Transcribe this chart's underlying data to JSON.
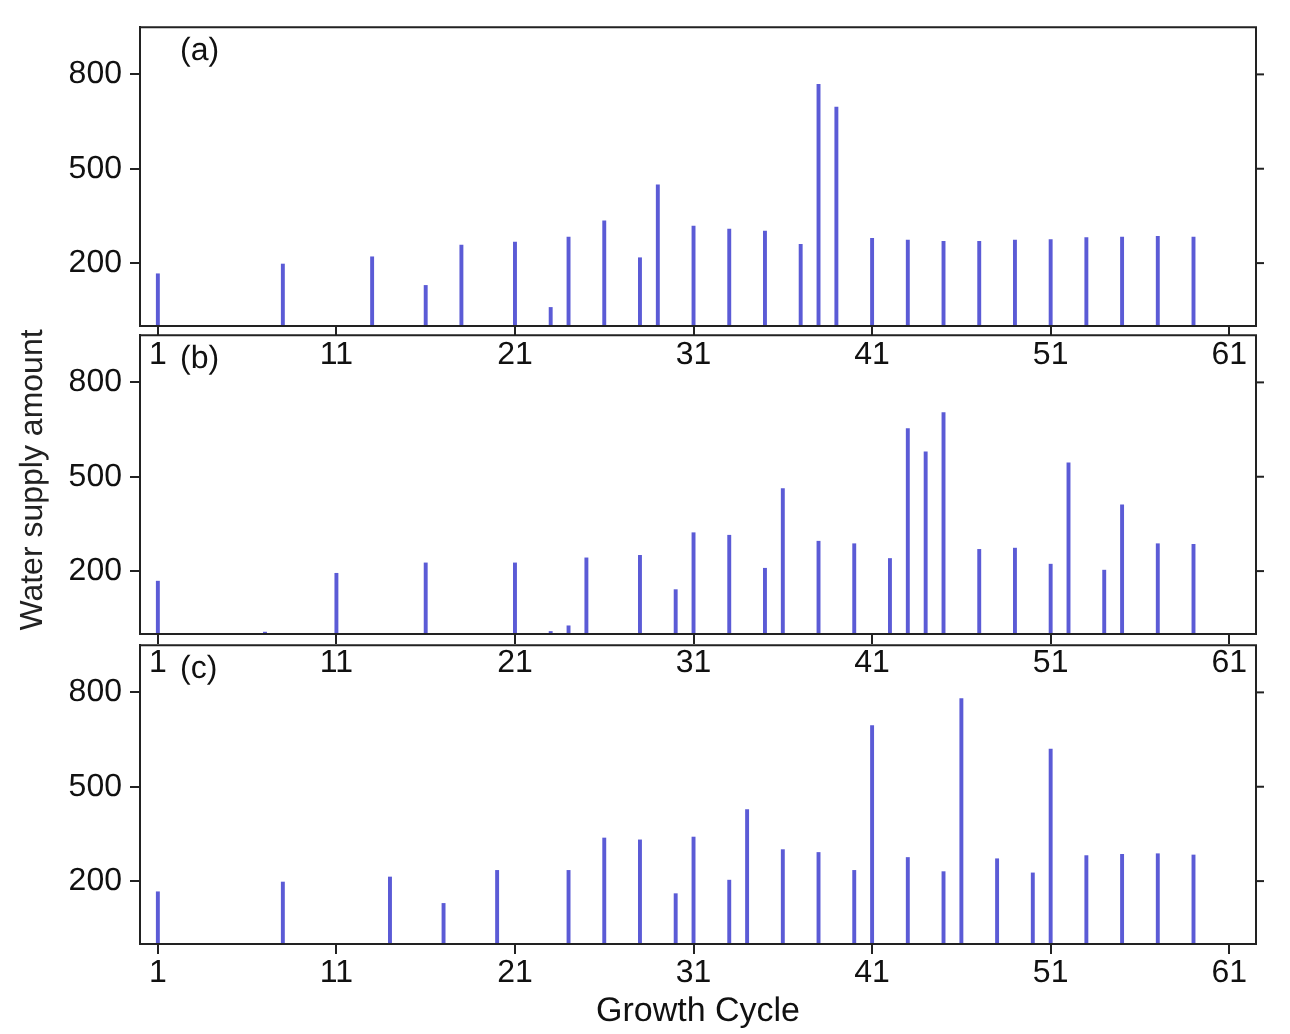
{
  "chart_data": [
    {
      "type": "bar",
      "title": "(a)",
      "color": "#5b5bd6",
      "xlim": [
        0,
        62.5
      ],
      "xticks": [
        1,
        11,
        21,
        31,
        41,
        51,
        61
      ],
      "ylim": [
        0,
        950
      ],
      "yticks": [
        200,
        500,
        800
      ],
      "grid": false,
      "legend": false,
      "x": [
        1,
        8,
        13,
        16,
        18,
        21,
        23,
        24,
        26,
        28,
        29,
        31,
        33,
        35,
        37,
        38,
        39,
        41,
        43,
        45,
        47,
        49,
        51,
        53,
        55,
        57,
        59
      ],
      "values": [
        165,
        196,
        219,
        128,
        256,
        266,
        58,
        282,
        333,
        216,
        448,
        317,
        307,
        301,
        259,
        767,
        695,
        278,
        272,
        268,
        268,
        272,
        274,
        280,
        282,
        284,
        282
      ]
    },
    {
      "type": "bar",
      "title": "(b)",
      "ylabel": "Water supply amount",
      "color": "#5b5bd6",
      "xlim": [
        0,
        62.5
      ],
      "xticks": [
        1,
        11,
        21,
        31,
        41,
        51,
        61
      ],
      "ylim": [
        0,
        950
      ],
      "yticks": [
        200,
        500,
        800
      ],
      "grid": false,
      "legend": false,
      "x": [
        1,
        7,
        11,
        16,
        21,
        23,
        24,
        25,
        28,
        30,
        31,
        33,
        35,
        36,
        38,
        40,
        42,
        43,
        44,
        45,
        47,
        49,
        51,
        52,
        54,
        55,
        57,
        59
      ],
      "values": [
        167,
        5,
        192,
        225,
        225,
        7,
        25,
        241,
        249,
        140,
        321,
        313,
        208,
        461,
        294,
        286,
        239,
        652,
        578,
        703,
        268,
        272,
        221,
        543,
        202,
        410,
        286,
        284
      ]
    },
    {
      "type": "bar",
      "title": "(c)",
      "xlabel": "Growth Cycle",
      "color": "#5b5bd6",
      "xlim": [
        0,
        62.5
      ],
      "xticks": [
        1,
        11,
        21,
        31,
        41,
        51,
        61
      ],
      "ylim": [
        0,
        950
      ],
      "yticks": [
        200,
        500,
        800
      ],
      "grid": false,
      "legend": false,
      "x": [
        1,
        8,
        14,
        17,
        20,
        24,
        26,
        28,
        30,
        31,
        33,
        34,
        36,
        38,
        40,
        41,
        43,
        45,
        46,
        48,
        50,
        51,
        53,
        55,
        57,
        59
      ],
      "values": [
        165,
        196,
        212,
        128,
        233,
        233,
        336,
        330,
        159,
        339,
        202,
        426,
        299,
        290,
        233,
        693,
        274,
        229,
        779,
        270,
        225,
        619,
        280,
        284,
        286,
        282
      ]
    }
  ]
}
